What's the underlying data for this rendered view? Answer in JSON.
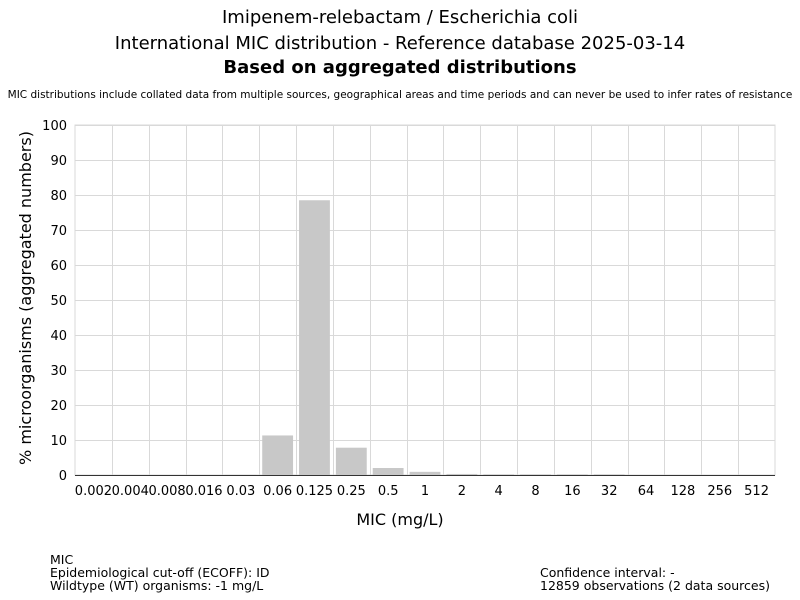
{
  "header": {
    "title_line1": "Imipenem-relebactam / Escherichia coli",
    "title_line2": "International MIC distribution - Reference database 2025-03-14",
    "title_line3": "Based on aggregated distributions",
    "disclaimer": "MIC distributions include collated data from multiple sources, geographical areas and time periods and can never be used to infer rates of resistance"
  },
  "footer": {
    "left": {
      "line1": "MIC",
      "line2": "Epidemiological cut-off (ECOFF): ID",
      "line3": "Wildtype (WT) organisms: -1 mg/L"
    },
    "right": {
      "line1": "Confidence interval: -",
      "line2": "12859 observations (2 data sources)"
    }
  },
  "chart_data": {
    "type": "bar",
    "title": "Imipenem-relebactam / Escherichia coli",
    "xlabel": "MIC (mg/L)",
    "ylabel": "% microorganisms (aggregated numbers)",
    "ylim": [
      0,
      100
    ],
    "yticks": [
      0,
      10,
      20,
      30,
      40,
      50,
      60,
      70,
      80,
      90,
      100
    ],
    "grid": true,
    "legend": "none",
    "bar_color": "#c8c8c8",
    "grid_color": "#d9d9d9",
    "categories": [
      "0.002",
      "0.004",
      "0.008",
      "0.016",
      "0.03",
      "0.06",
      "0.125",
      "0.25",
      "0.5",
      "1",
      "2",
      "4",
      "8",
      "16",
      "32",
      "64",
      "128",
      "256",
      "512"
    ],
    "values": [
      0,
      0,
      0,
      0,
      0.05,
      11.3,
      78.5,
      7.8,
      2.0,
      0.9,
      0.3,
      0.2,
      0.2,
      0.2,
      0.2,
      0,
      0,
      0,
      0
    ]
  }
}
